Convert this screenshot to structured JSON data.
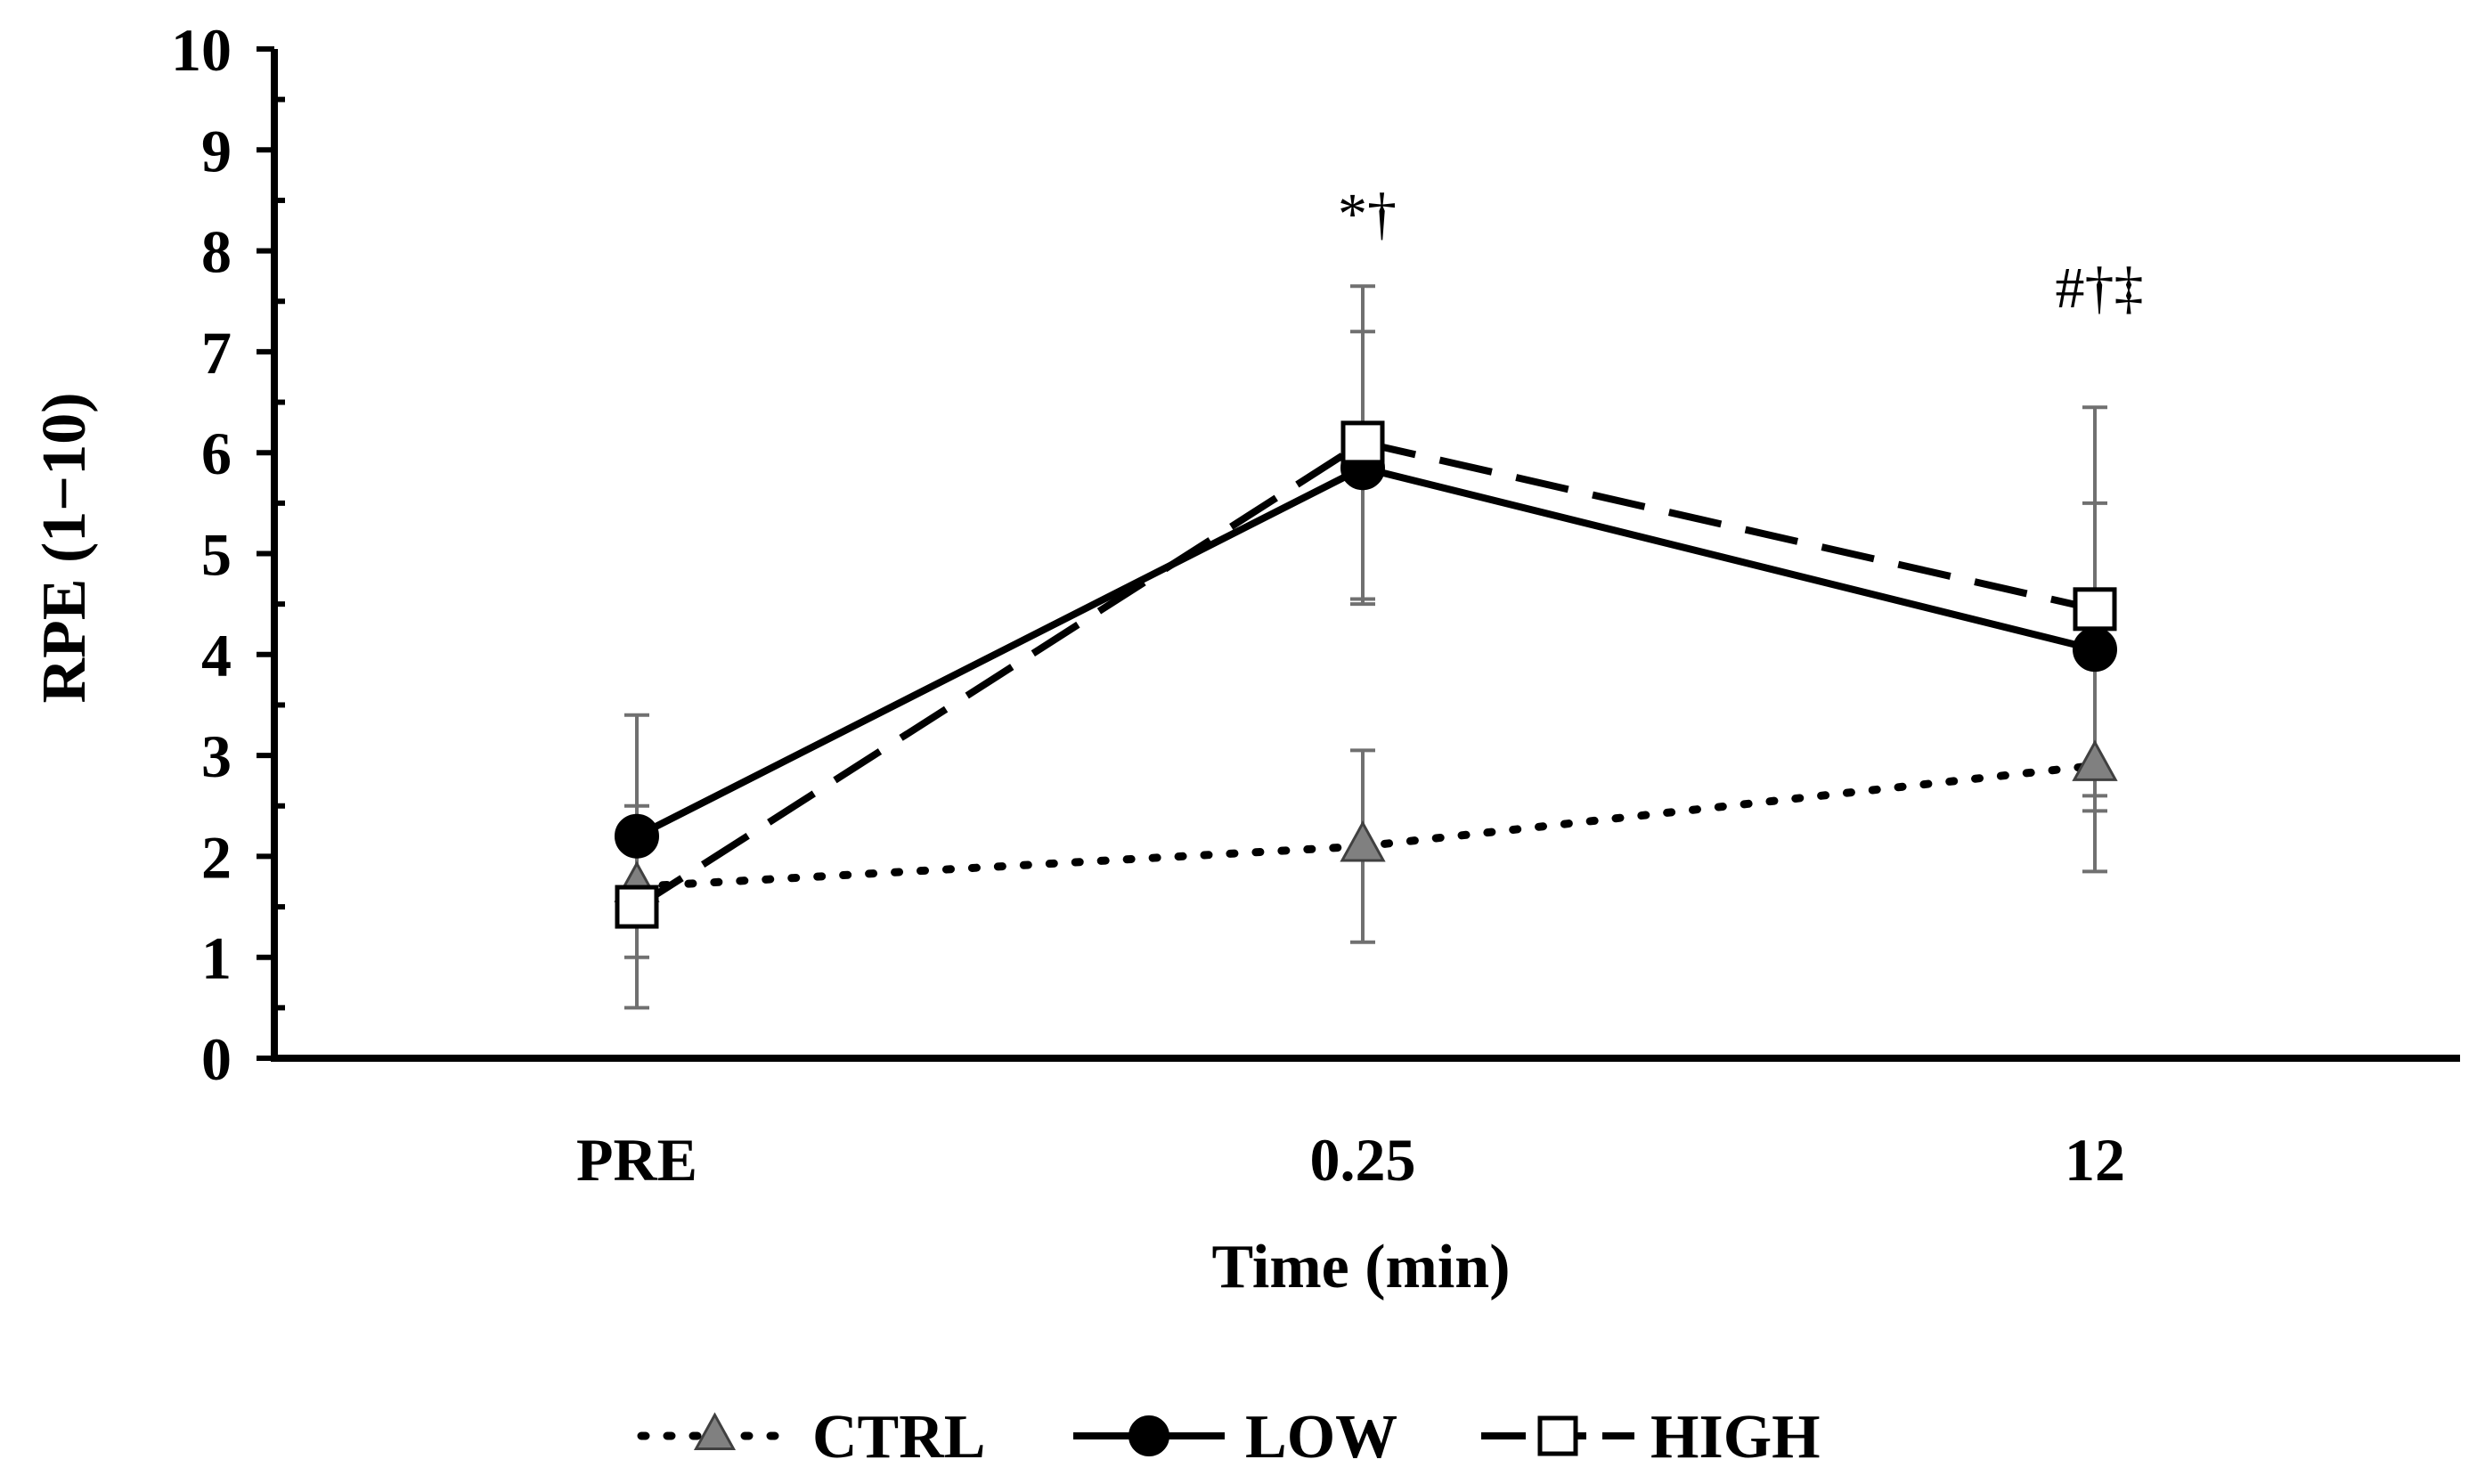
{
  "chart_data": {
    "type": "line",
    "title": "",
    "xlabel": "Time (min)",
    "ylabel": "RPE (1−10)",
    "ylim": [
      0,
      10
    ],
    "yticks": [
      "0",
      "1",
      "2",
      "3",
      "4",
      "5",
      "6",
      "7",
      "8",
      "9",
      "10"
    ],
    "categories": [
      "PRE",
      "0.25",
      "12"
    ],
    "series": [
      {
        "name": "CTRL",
        "values": [
          1.7,
          2.1,
          2.9
        ],
        "errors": [
          0,
          0.95,
          1.05
        ],
        "marker": "triangle",
        "line": "dotted",
        "color": "#808080"
      },
      {
        "name": "LOW",
        "values": [
          2.2,
          5.85,
          4.05
        ],
        "errors": [
          1.2,
          1.35,
          1.45
        ],
        "marker": "circle",
        "line": "solid",
        "color": "#000000"
      },
      {
        "name": "HIGH",
        "values": [
          1.5,
          6.1,
          4.45
        ],
        "errors": [
          1.0,
          1.55,
          2.0
        ],
        "marker": "square",
        "line": "dashed",
        "color": "#ffffff"
      }
    ],
    "annotations": [
      {
        "category": "0.25",
        "text": "*†"
      },
      {
        "category": "12",
        "text": "#†‡"
      }
    ],
    "legend_position": "bottom-center",
    "grid": false
  }
}
